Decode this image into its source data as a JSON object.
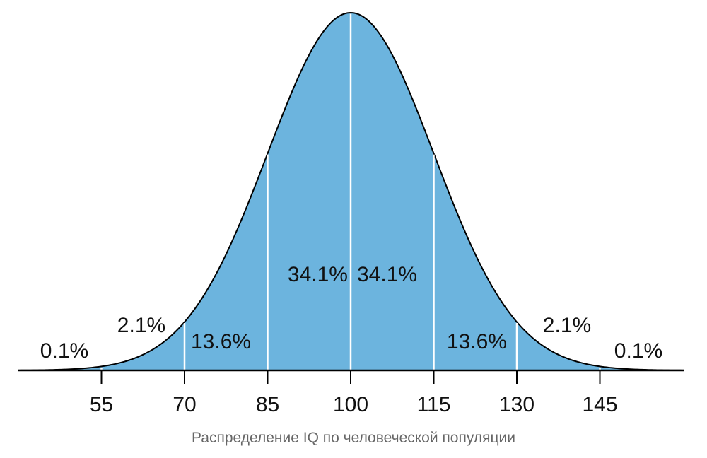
{
  "chart_data": {
    "type": "area",
    "distribution": "normal",
    "mean": 100,
    "sd": 15,
    "xlim": [
      40,
      160
    ],
    "ticks": [
      55,
      70,
      85,
      100,
      115,
      130,
      145
    ],
    "tick_labels": [
      "55",
      "70",
      "85",
      "100",
      "115",
      "130",
      "145"
    ],
    "bands": [
      {
        "from": 40,
        "to": 55,
        "label": "0.1%"
      },
      {
        "from": 55,
        "to": 70,
        "label": "2.1%"
      },
      {
        "from": 70,
        "to": 85,
        "label": "13.6%"
      },
      {
        "from": 85,
        "to": 100,
        "label": "34.1%"
      },
      {
        "from": 100,
        "to": 115,
        "label": "34.1%"
      },
      {
        "from": 115,
        "to": 130,
        "label": "13.6%"
      },
      {
        "from": 130,
        "to": 145,
        "label": "2.1%"
      },
      {
        "from": 145,
        "to": 160,
        "label": "0.1%"
      }
    ],
    "xlabel": "Распределение IQ по человеческой популяции",
    "grid": false,
    "colors": {
      "fill": "#6cb4de",
      "outline": "#000000",
      "divider": "#ffffff",
      "caption": "#666666"
    }
  }
}
